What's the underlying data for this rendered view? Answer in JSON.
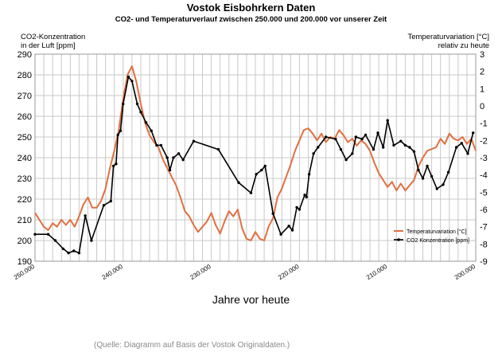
{
  "header": {
    "title": "Vostok Eisbohrkern Daten",
    "subtitle": "CO2- und Temperaturverlauf zwischen 250.000 und 200.000 vor unserer Zeit"
  },
  "axes": {
    "left_label_1": "CO2-Konzentration",
    "left_label_2": "in der Luft [ppm]",
    "right_label_1": "Temperaturvariation [°C]",
    "right_label_2": "relativ zu heute",
    "x_label": "Jahre vor heute"
  },
  "footer": {
    "source": "(Quelle: Diagramm auf Basis der Vostok Originaldaten.)"
  },
  "chart_data": {
    "type": "line",
    "x_ticks": [
      "250.000",
      "240.000",
      "230.000",
      "220.000",
      "210.000",
      "200.000"
    ],
    "x_tick_values": [
      250000,
      240000,
      230000,
      220000,
      210000,
      200000
    ],
    "y_left_ticks": [
      190,
      200,
      210,
      220,
      230,
      240,
      250,
      260,
      270,
      280,
      290
    ],
    "y_right_ticks": [
      3,
      2,
      1,
      0,
      -1,
      -2,
      -3,
      -4,
      -5,
      -6,
      -7,
      -8,
      -9
    ],
    "xlim": [
      250000,
      200000
    ],
    "ylim_left": [
      190,
      290
    ],
    "ylim_right": [
      -9,
      3
    ],
    "grid": true,
    "legend_position": "bottom-right",
    "series": [
      {
        "name": "Temperaturvariation [°C]",
        "axis": "right",
        "color": "#e07040",
        "x": [
          250000,
          249500,
          249000,
          248500,
          248000,
          247500,
          247000,
          246500,
          246000,
          245500,
          245000,
          244500,
          244000,
          243500,
          243000,
          242500,
          242000,
          241500,
          241000,
          240500,
          240000,
          239500,
          239000,
          238500,
          238000,
          237500,
          237000,
          236500,
          236000,
          235500,
          235000,
          234500,
          234000,
          233500,
          233000,
          232500,
          232000,
          231500,
          231000,
          230500,
          230000,
          229500,
          229000,
          228500,
          228000,
          227500,
          227000,
          226500,
          226000,
          225500,
          225000,
          224500,
          224000,
          223500,
          223000,
          222500,
          222000,
          221500,
          221000,
          220500,
          220000,
          219500,
          219000,
          218500,
          218000,
          217500,
          217000,
          216500,
          216000,
          215500,
          215000,
          214500,
          214000,
          213500,
          213000,
          212500,
          212000,
          211500,
          211000,
          210500,
          210000,
          209500,
          209000,
          208500,
          208000,
          207500,
          207000,
          206500,
          206000,
          205500,
          205000,
          204500,
          204000,
          203500,
          203000,
          202500,
          202000,
          201500,
          201000,
          200500,
          200000
        ],
        "values": [
          -6.2,
          -6.6,
          -7.0,
          -7.2,
          -6.8,
          -7.0,
          -6.6,
          -6.9,
          -6.6,
          -7.0,
          -6.4,
          -5.7,
          -5.3,
          -5.9,
          -5.9,
          -5.5,
          -4.8,
          -3.6,
          -2.6,
          -1.4,
          0.4,
          1.8,
          2.3,
          1.4,
          0.1,
          -1.0,
          -1.7,
          -2.1,
          -2.4,
          -3.1,
          -3.6,
          -4.1,
          -4.6,
          -5.3,
          -6.1,
          -6.4,
          -6.9,
          -7.3,
          -7.0,
          -6.7,
          -6.2,
          -6.9,
          -7.4,
          -6.7,
          -6.1,
          -6.4,
          -6.0,
          -7.1,
          -7.7,
          -7.8,
          -7.3,
          -7.7,
          -7.8,
          -7.0,
          -6.5,
          -5.3,
          -4.8,
          -4.1,
          -3.4,
          -2.6,
          -2.0,
          -1.4,
          -1.3,
          -1.6,
          -2.0,
          -1.6,
          -2.1,
          -1.8,
          -1.9,
          -1.4,
          -1.7,
          -2.1,
          -1.9,
          -2.3,
          -2.0,
          -2.2,
          -2.6,
          -3.3,
          -3.9,
          -4.3,
          -4.7,
          -4.4,
          -4.9,
          -4.5,
          -4.9,
          -4.6,
          -4.3,
          -3.5,
          -3.0,
          -2.6,
          -2.5,
          -2.4,
          -1.9,
          -2.2,
          -1.6,
          -1.9,
          -2.0,
          -1.8,
          -2.2,
          -1.9,
          -2.6
        ],
        "x_raw": "temperature"
      },
      {
        "name": "CO2 Konzentration [ppm]",
        "axis": "left",
        "color": "#000000",
        "x": [
          250000,
          248500,
          247700,
          246800,
          246200,
          245600,
          245000,
          244300,
          243600,
          242200,
          241400,
          241100,
          240800,
          240600,
          240300,
          240000,
          239400,
          239000,
          238400,
          238000,
          237400,
          236800,
          236200,
          235700,
          235000,
          234700,
          234300,
          233700,
          233200,
          232000,
          229200,
          226900,
          225500,
          224900,
          224300,
          223900,
          223000,
          222100,
          221200,
          220800,
          220300,
          220000,
          219400,
          219200,
          218900,
          218400,
          217900,
          217000,
          215900,
          215300,
          214700,
          214000,
          213600,
          212900,
          212500,
          211600,
          211100,
          210500,
          210000,
          209300,
          208500,
          208000,
          207500,
          207000,
          206500,
          206000,
          205500,
          205000,
          204400,
          203700,
          203100,
          202200,
          201600,
          200900,
          200300
        ],
        "values": [
          203,
          203,
          200,
          196,
          194,
          195,
          194,
          212,
          200,
          217,
          219,
          236,
          237,
          251,
          253,
          266,
          279,
          277,
          266,
          262,
          257,
          253,
          246,
          246,
          240,
          234,
          240,
          242,
          239,
          248,
          244,
          228,
          223,
          232,
          234,
          236,
          213,
          203,
          207,
          205,
          216,
          215,
          222,
          221,
          232,
          242,
          245,
          250,
          249,
          244,
          239,
          242,
          250,
          249,
          251,
          244,
          252,
          245,
          258,
          246,
          248,
          246,
          245,
          243,
          234,
          230,
          236,
          231,
          225,
          227,
          233,
          245,
          247,
          242,
          252
        ],
        "x_raw": "co2"
      }
    ]
  }
}
